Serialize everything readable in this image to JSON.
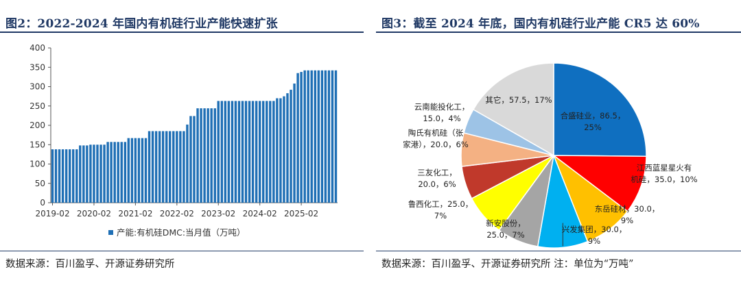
{
  "left": {
    "title": "图2：2022-2024 年国内有机硅行业产能快速扩张",
    "source": "数据来源：百川盈孚、开源证券研究所",
    "legend_label": "产能:有机硅DMC:当月值（万吨）",
    "colors": {
      "bar": "#1f6fb5",
      "axis": "#555555",
      "title": "#1f3864"
    }
  },
  "right": {
    "title": "图3：截至 2024 年底，国内有机硅行业产能 CR5 达 60%",
    "source": "数据来源：百川盈孚、开源证券研究所   注：单位为“万吨”",
    "colors": {
      "title": "#1f3864",
      "edge": "#ffffff"
    }
  },
  "chart_data": [
    {
      "type": "bar",
      "xlabel": "",
      "ylabel": "",
      "ylim": [
        0,
        400
      ],
      "y_ticks": [
        "0",
        "50",
        "100",
        "150",
        "200",
        "250",
        "300",
        "350",
        "400"
      ],
      "x_tick_labels": [
        "2019-02",
        "2020-02",
        "2021-02",
        "2022-02",
        "2023-02",
        "2024-02",
        "2025-02"
      ],
      "x_tick_index": [
        0,
        12,
        24,
        36,
        48,
        60,
        72
      ],
      "grid": false,
      "legend": "bottom-center",
      "series": [
        {
          "name": "产能:有机硅DMC:当月值（万吨）",
          "values": [
            138,
            138,
            138,
            138,
            138,
            138,
            138,
            138,
            148,
            148,
            148,
            150,
            150,
            150,
            150,
            150,
            157,
            157,
            157,
            157,
            157,
            157,
            167,
            167,
            167,
            167,
            167,
            167,
            185,
            185,
            185,
            185,
            185,
            185,
            185,
            185,
            185,
            185,
            185,
            202,
            224,
            224,
            244,
            244,
            244,
            244,
            244,
            244,
            263,
            263,
            263,
            263,
            263,
            263,
            263,
            263,
            263,
            263,
            263,
            263,
            263,
            263,
            263,
            263,
            263,
            270,
            270,
            275,
            283,
            292,
            308,
            335,
            338,
            342,
            342,
            342,
            342,
            342,
            342,
            342,
            342,
            342,
            342
          ]
        }
      ]
    },
    {
      "type": "pie",
      "slices": [
        {
          "label": "合盛硅业，86.5，25%",
          "value": 86.5,
          "percent": 25,
          "color": "#0f6fc0"
        },
        {
          "label": "江西蓝星星火有机硅，35.0，10%",
          "value": 35.0,
          "percent": 10,
          "color": "#ff0000"
        },
        {
          "label": "东岳硅材，30.0，9%",
          "value": 30.0,
          "percent": 9,
          "color": "#ffc000"
        },
        {
          "label": "兴发集团，30.0，9%",
          "value": 30.0,
          "percent": 9,
          "color": "#00b0f0"
        },
        {
          "label": "新安股份，25.0，7%",
          "value": 25.0,
          "percent": 7,
          "color": "#a5a5a5"
        },
        {
          "label": "鲁西化工，25.0，7%",
          "value": 25.0,
          "percent": 7,
          "color": "#ffff00"
        },
        {
          "label": "三友化工，20.0，6%",
          "value": 20.0,
          "percent": 6,
          "color": "#c0392b"
        },
        {
          "label": "陶氏有机硅（张家港），20.0，6%",
          "value": 20.0,
          "percent": 6,
          "color": "#f4b183"
        },
        {
          "label": "云南能投化工，15.0，4%",
          "value": 15.0,
          "percent": 4,
          "color": "#9dc3e6"
        },
        {
          "label": "其它，57.5，17%",
          "value": 57.5,
          "percent": 17,
          "color": "#d9d9d9"
        }
      ],
      "display_labels": [
        [
          "合盛硅业，86.5，",
          "25%"
        ],
        [
          "江西蓝星星火有",
          "机硅，35.0，10%"
        ],
        [
          "东岳硅材，30.0，",
          "9%"
        ],
        [
          "兴发集团，30.0，",
          "9%"
        ],
        [
          "新安股份，",
          "25.0，7%"
        ],
        [
          "鲁西化工，25.0，",
          "7%"
        ],
        [
          "三友化工，",
          "20.0，6%"
        ],
        [
          "陶氏有机硅（张",
          "家港），20.0，6%"
        ],
        [
          "云南能投化工，",
          "15.0，4%"
        ],
        [
          "其它，57.5，17%"
        ]
      ]
    }
  ]
}
